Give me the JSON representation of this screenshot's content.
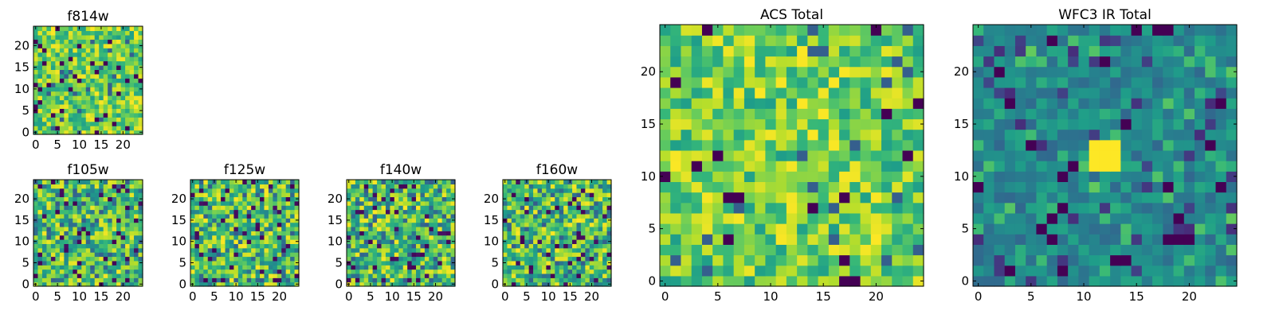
{
  "chart_data": [
    {
      "id": "f814w",
      "type": "heatmap",
      "title": "f814w",
      "grid_size": 25,
      "seed": 814,
      "style": "bright",
      "hot_blob": null,
      "xlim": [
        0,
        24
      ],
      "ylim": [
        0,
        24
      ],
      "xticks": [
        0,
        5,
        10,
        15,
        20
      ],
      "yticks": [
        0,
        5,
        10,
        15,
        20
      ],
      "xtick_labels": [
        "0",
        "5",
        "10",
        "15",
        "20"
      ],
      "ytick_labels": [
        "0",
        "5",
        "10",
        "15",
        "20"
      ]
    },
    {
      "id": "f105w",
      "type": "heatmap",
      "title": "f105w",
      "grid_size": 25,
      "seed": 105,
      "style": "mixed",
      "hot_blob": null,
      "xlim": [
        0,
        24
      ],
      "ylim": [
        0,
        24
      ],
      "xticks": [
        0,
        5,
        10,
        15,
        20
      ],
      "yticks": [
        0,
        5,
        10,
        15,
        20
      ],
      "xtick_labels": [
        "0",
        "5",
        "10",
        "15",
        "20"
      ],
      "ytick_labels": [
        "0",
        "5",
        "10",
        "15",
        "20"
      ]
    },
    {
      "id": "f125w",
      "type": "heatmap",
      "title": "f125w",
      "grid_size": 25,
      "seed": 125,
      "style": "mixed",
      "hot_blob": null,
      "xlim": [
        0,
        24
      ],
      "ylim": [
        0,
        24
      ],
      "xticks": [
        0,
        5,
        10,
        15,
        20
      ],
      "yticks": [
        0,
        5,
        10,
        15,
        20
      ],
      "xtick_labels": [
        "0",
        "5",
        "10",
        "15",
        "20"
      ],
      "ytick_labels": [
        "0",
        "5",
        "10",
        "15",
        "20"
      ]
    },
    {
      "id": "f140w",
      "type": "heatmap",
      "title": "f140w",
      "grid_size": 25,
      "seed": 140,
      "style": "mixed",
      "hot_blob": null,
      "xlim": [
        0,
        24
      ],
      "ylim": [
        0,
        24
      ],
      "xticks": [
        0,
        5,
        10,
        15,
        20
      ],
      "yticks": [
        0,
        5,
        10,
        15,
        20
      ],
      "xtick_labels": [
        "0",
        "5",
        "10",
        "15",
        "20"
      ],
      "ytick_labels": [
        "0",
        "5",
        "10",
        "15",
        "20"
      ]
    },
    {
      "id": "f160w",
      "type": "heatmap",
      "title": "f160w",
      "grid_size": 25,
      "seed": 160,
      "style": "mixed",
      "hot_blob": null,
      "xlim": [
        0,
        24
      ],
      "ylim": [
        0,
        24
      ],
      "xticks": [
        0,
        5,
        10,
        15,
        20
      ],
      "yticks": [
        0,
        5,
        10,
        15,
        20
      ],
      "xtick_labels": [
        "0",
        "5",
        "10",
        "15",
        "20"
      ],
      "ytick_labels": [
        "0",
        "5",
        "10",
        "15",
        "20"
      ]
    },
    {
      "id": "acs_total",
      "type": "heatmap",
      "title": "ACS Total",
      "grid_size": 25,
      "seed": 901,
      "style": "bright",
      "hot_blob": null,
      "xlim": [
        0,
        24
      ],
      "ylim": [
        0,
        24
      ],
      "xticks": [
        0,
        5,
        10,
        15,
        20
      ],
      "yticks": [
        0,
        5,
        10,
        15,
        20
      ],
      "xtick_labels": [
        "0",
        "5",
        "10",
        "15",
        "20"
      ],
      "ytick_labels": [
        "0",
        "5",
        "10",
        "15",
        "20"
      ]
    },
    {
      "id": "wfc3_ir_total",
      "type": "heatmap",
      "title": "WFC3 IR Total",
      "grid_size": 25,
      "seed": 902,
      "style": "dark",
      "hot_blob": {
        "x_range": [
          11,
          13
        ],
        "y_range": [
          11,
          13
        ]
      },
      "xlim": [
        0,
        24
      ],
      "ylim": [
        0,
        24
      ],
      "xticks": [
        0,
        5,
        10,
        15,
        20
      ],
      "yticks": [
        0,
        5,
        10,
        15,
        20
      ],
      "xtick_labels": [
        "0",
        "5",
        "10",
        "15",
        "20"
      ],
      "ytick_labels": [
        "0",
        "5",
        "10",
        "15",
        "20"
      ]
    }
  ],
  "colors": {
    "colormap": "viridis",
    "viridis_stops": [
      "#440154",
      "#482878",
      "#3e4989",
      "#31688e",
      "#26828e",
      "#1f9e89",
      "#35b779",
      "#6ece58",
      "#b5de2b",
      "#fde725"
    ],
    "axis": "#000000",
    "background": "#ffffff"
  }
}
